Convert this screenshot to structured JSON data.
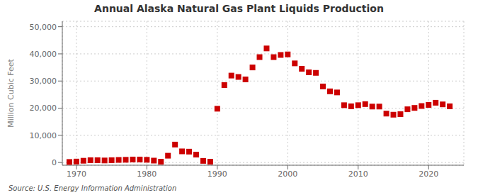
{
  "chart_data": {
    "type": "scatter",
    "title": "Annual Alaska Natural Gas Plant Liquids Production",
    "y_label": "Million Cubic Feet",
    "source": "Source: U.S. Energy Information Administration",
    "color": "#cc0000",
    "marker": "square",
    "grid": true,
    "xlim": [
      1968,
      2025
    ],
    "ylim": [
      -1000,
      52000
    ],
    "xticks": [
      1970,
      1980,
      1990,
      2000,
      2010,
      2020
    ],
    "yticks": [
      0,
      {
        "value": 10000,
        "label": "10,000"
      },
      {
        "value": 20000,
        "label": "20,000"
      },
      {
        "value": 30000,
        "label": "30,000"
      },
      {
        "value": 40000,
        "label": "40,000"
      },
      {
        "value": 50000,
        "label": "50,000"
      }
    ],
    "x": [
      1969,
      1970,
      1971,
      1972,
      1973,
      1974,
      1975,
      1976,
      1977,
      1978,
      1979,
      1980,
      1981,
      1982,
      1983,
      1984,
      1985,
      1986,
      1987,
      1988,
      1989,
      1990,
      1991,
      1992,
      1993,
      1994,
      1995,
      1996,
      1997,
      1998,
      1999,
      2000,
      2001,
      2002,
      2003,
      2004,
      2005,
      2006,
      2007,
      2008,
      2009,
      2010,
      2011,
      2012,
      2013,
      2014,
      2015,
      2016,
      2017,
      2018,
      2019,
      2020,
      2021,
      2022,
      2023
    ],
    "values": [
      200,
      350,
      650,
      850,
      850,
      750,
      850,
      950,
      1000,
      1100,
      1100,
      1000,
      700,
      300,
      2500,
      6600,
      4100,
      4000,
      2900,
      600,
      300,
      19800,
      28500,
      32000,
      31500,
      30600,
      35000,
      38800,
      42000,
      38800,
      39600,
      39800,
      36500,
      34500,
      33200,
      33000,
      28000,
      26200,
      25800,
      21100,
      20700,
      21100,
      21500,
      20600,
      20600,
      18000,
      17600,
      17800,
      19600,
      20100,
      20800,
      21200,
      22000,
      21400,
      20700
    ]
  }
}
